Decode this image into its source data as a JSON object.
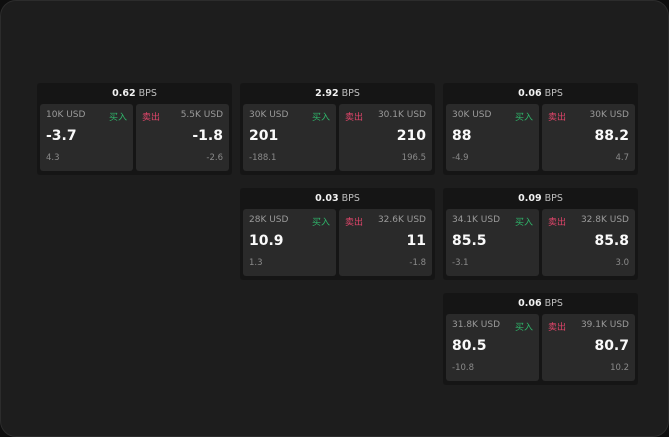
{
  "unit_label": "BPS",
  "buy_label": "买入",
  "sell_label": "卖出",
  "colors": {
    "buy": "#2fb56a",
    "sell": "#e0456a"
  },
  "panels": [
    {
      "spread": "0.62",
      "bid": {
        "size": "10K USD",
        "price": "-3.7",
        "change": "4.3"
      },
      "ask": {
        "size": "5.5K USD",
        "price": "-1.8",
        "change": "-2.6"
      }
    },
    {
      "spread": "2.92",
      "bid": {
        "size": "30K USD",
        "price": "201",
        "change": "-188.1"
      },
      "ask": {
        "size": "30.1K USD",
        "price": "210",
        "change": "196.5"
      }
    },
    {
      "spread": "0.06",
      "bid": {
        "size": "30K USD",
        "price": "88",
        "change": "-4.9"
      },
      "ask": {
        "size": "30K USD",
        "price": "88.2",
        "change": "4.7"
      }
    },
    {
      "spread": "0.03",
      "bid": {
        "size": "28K USD",
        "price": "10.9",
        "change": "1.3"
      },
      "ask": {
        "size": "32.6K USD",
        "price": "11",
        "change": "-1.8"
      }
    },
    {
      "spread": "0.09",
      "bid": {
        "size": "34.1K USD",
        "price": "85.5",
        "change": "-3.1"
      },
      "ask": {
        "size": "32.8K USD",
        "price": "85.8",
        "change": "3.0"
      }
    },
    {
      "spread": "0.06",
      "bid": {
        "size": "31.8K USD",
        "price": "80.5",
        "change": "-10.8"
      },
      "ask": {
        "size": "39.1K USD",
        "price": "80.7",
        "change": "10.2"
      }
    }
  ]
}
